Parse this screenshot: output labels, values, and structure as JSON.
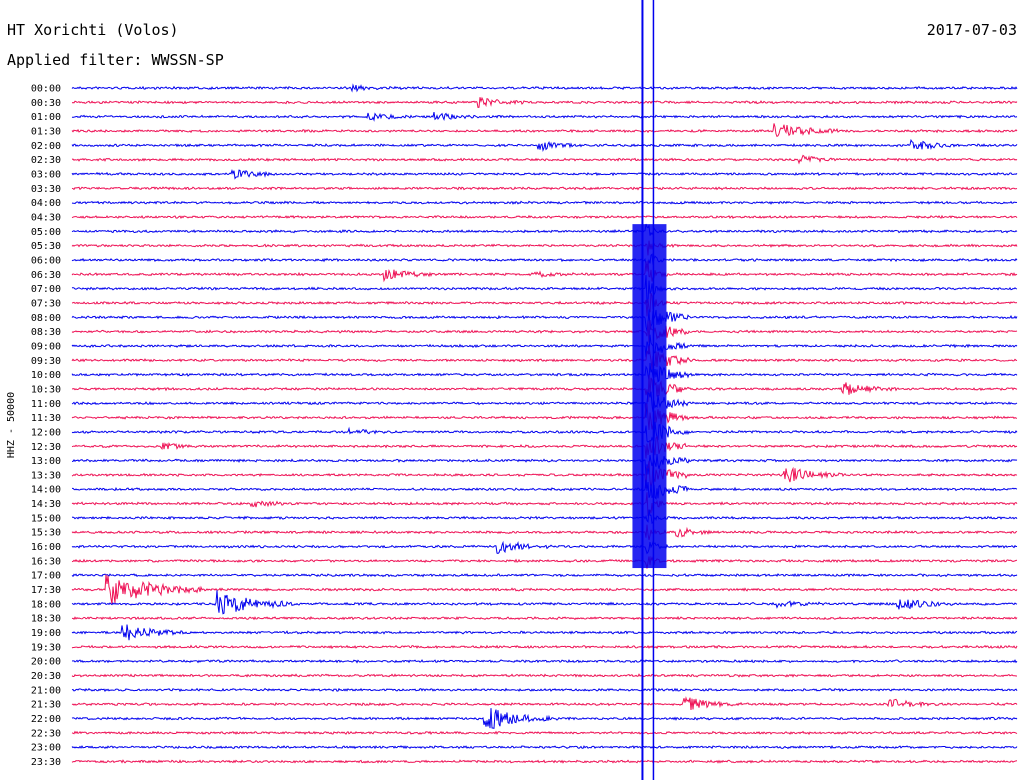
{
  "header": {
    "station": "HT Xorichti (Volos)",
    "date": "2017-07-03",
    "filter": "Applied filter: WWSSN-SP"
  },
  "colors": {
    "trace_a": "#0000ee",
    "trace_b": "#ee1155",
    "background": "#ffffff"
  },
  "chart_data": {
    "type": "helicorder",
    "ylabel": "HHZ - 50000",
    "tick_labels": [
      "00:00",
      "00:30",
      "01:00",
      "01:30",
      "02:00",
      "02:30",
      "03:00",
      "03:30",
      "04:00",
      "04:30",
      "05:00",
      "05:30",
      "06:00",
      "06:30",
      "07:00",
      "07:30",
      "08:00",
      "08:30",
      "09:00",
      "09:30",
      "10:00",
      "10:30",
      "11:00",
      "11:30",
      "12:00",
      "12:30",
      "13:00",
      "13:30",
      "14:00",
      "14:30",
      "15:00",
      "15:30",
      "16:00",
      "16:30",
      "17:00",
      "17:30",
      "18:00",
      "18:30",
      "19:00",
      "19:30",
      "20:00",
      "20:30",
      "21:00",
      "21:30",
      "22:00",
      "22:30",
      "23:00",
      "23:30"
    ],
    "x_range_minutes": [
      0,
      30
    ],
    "line_colors": [
      "trace_a",
      "trace_b"
    ],
    "main_event": {
      "x_minute": 18.3,
      "start_line": "05:00",
      "end_line": "16:30"
    },
    "events": [
      {
        "line": "00:00",
        "x_minute": 9.0,
        "amp": 0.3
      },
      {
        "line": "00:30",
        "x_minute": 13.0,
        "amp": 0.6
      },
      {
        "line": "01:00",
        "x_minute": 9.4,
        "amp": 0.5
      },
      {
        "line": "01:00",
        "x_minute": 11.6,
        "amp": 0.5
      },
      {
        "line": "01:30",
        "x_minute": 22.4,
        "amp": 1.2
      },
      {
        "line": "02:00",
        "x_minute": 14.9,
        "amp": 0.6
      },
      {
        "line": "02:00",
        "x_minute": 26.7,
        "amp": 0.7
      },
      {
        "line": "02:30",
        "x_minute": 23.2,
        "amp": 0.5
      },
      {
        "line": "03:00",
        "x_minute": 5.2,
        "amp": 0.6
      },
      {
        "line": "06:30",
        "x_minute": 10.0,
        "amp": 0.8
      },
      {
        "line": "06:30",
        "x_minute": 14.7,
        "amp": 0.4
      },
      {
        "line": "10:30",
        "x_minute": 24.5,
        "amp": 0.9
      },
      {
        "line": "12:00",
        "x_minute": 8.9,
        "amp": 0.4
      },
      {
        "line": "12:30",
        "x_minute": 2.9,
        "amp": 0.4
      },
      {
        "line": "13:30",
        "x_minute": 22.7,
        "amp": 1.1
      },
      {
        "line": "14:30",
        "x_minute": 5.8,
        "amp": 0.4
      },
      {
        "line": "15:30",
        "x_minute": 19.3,
        "amp": 0.6
      },
      {
        "line": "16:00",
        "x_minute": 13.6,
        "amp": 0.9
      },
      {
        "line": "17:30",
        "x_minute": 1.2,
        "amp": 2.5
      },
      {
        "line": "18:00",
        "x_minute": 4.7,
        "amp": 1.8
      },
      {
        "line": "18:00",
        "x_minute": 22.5,
        "amp": 0.5
      },
      {
        "line": "18:00",
        "x_minute": 26.3,
        "amp": 0.9
      },
      {
        "line": "19:00",
        "x_minute": 1.7,
        "amp": 1.2
      },
      {
        "line": "21:30",
        "x_minute": 19.5,
        "amp": 1.0
      },
      {
        "line": "21:30",
        "x_minute": 26.0,
        "amp": 0.7
      },
      {
        "line": "22:00",
        "x_minute": 13.2,
        "amp": 1.6
      }
    ]
  }
}
